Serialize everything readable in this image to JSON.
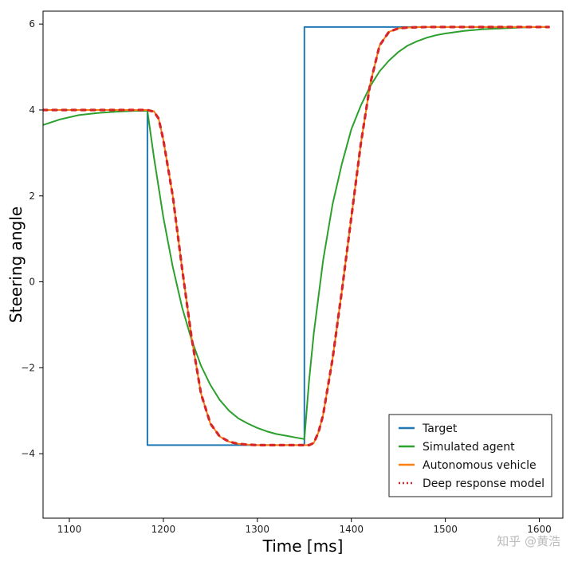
{
  "watermark": "知乎 @黄浩",
  "chart_data": {
    "type": "line",
    "title": "",
    "xlabel": "Time [ms]",
    "ylabel": "Steering angle",
    "xlim": [
      1072,
      1625
    ],
    "ylim": [
      -5.5,
      6.3
    ],
    "xticks": [
      1100,
      1200,
      1300,
      1400,
      1500,
      1600
    ],
    "yticks": [
      -4,
      -2,
      0,
      2,
      4,
      6
    ],
    "xtick_labels": [
      "1100",
      "1200",
      "1300",
      "1400",
      "1500",
      "1600"
    ],
    "ytick_labels": [
      "−4",
      "−2",
      "0",
      "2",
      "4",
      "6"
    ],
    "grid": false,
    "legend_position": "lower-right",
    "series": [
      {
        "name": "Target",
        "color": "#1f77b4",
        "style": "solid",
        "x": [
          1183,
          1183,
          1350,
          1350,
          1610
        ],
        "y": [
          4.0,
          -3.8,
          -3.8,
          5.93,
          5.93
        ]
      },
      {
        "name": "Simulated agent",
        "color": "#2ca02c",
        "style": "solid",
        "x": [
          1072,
          1090,
          1110,
          1130,
          1150,
          1170,
          1183,
          1190,
          1200,
          1210,
          1220,
          1230,
          1240,
          1250,
          1260,
          1270,
          1280,
          1290,
          1300,
          1310,
          1320,
          1330,
          1340,
          1350,
          1355,
          1360,
          1370,
          1380,
          1390,
          1400,
          1410,
          1420,
          1430,
          1440,
          1450,
          1460,
          1470,
          1480,
          1490,
          1500,
          1520,
          1540,
          1560,
          1580,
          1600,
          1610
        ],
        "y": [
          3.65,
          3.78,
          3.88,
          3.93,
          3.96,
          3.98,
          3.98,
          2.9,
          1.5,
          0.35,
          -0.6,
          -1.35,
          -1.95,
          -2.4,
          -2.75,
          -3.0,
          -3.18,
          -3.3,
          -3.4,
          -3.48,
          -3.54,
          -3.58,
          -3.62,
          -3.66,
          -2.3,
          -1.2,
          0.5,
          1.8,
          2.75,
          3.55,
          4.1,
          4.55,
          4.9,
          5.15,
          5.35,
          5.5,
          5.6,
          5.68,
          5.74,
          5.78,
          5.84,
          5.88,
          5.9,
          5.92,
          5.93,
          5.93
        ]
      },
      {
        "name": "Autonomous vehicle",
        "color": "#ff7f0e",
        "style": "solid",
        "x": [
          1072,
          1183,
          1190,
          1195,
          1200,
          1210,
          1220,
          1230,
          1240,
          1250,
          1260,
          1270,
          1280,
          1290,
          1300,
          1320,
          1340,
          1355,
          1360,
          1365,
          1370,
          1380,
          1390,
          1400,
          1410,
          1420,
          1430,
          1440,
          1450,
          1460,
          1480,
          1500,
          1540,
          1580,
          1610
        ],
        "y": [
          4.0,
          4.0,
          3.97,
          3.8,
          3.3,
          2.0,
          0.3,
          -1.3,
          -2.6,
          -3.3,
          -3.6,
          -3.72,
          -3.77,
          -3.79,
          -3.8,
          -3.8,
          -3.8,
          -3.8,
          -3.75,
          -3.5,
          -3.1,
          -1.8,
          -0.2,
          1.5,
          3.2,
          4.6,
          5.5,
          5.82,
          5.9,
          5.92,
          5.93,
          5.93,
          5.93,
          5.93,
          5.93
        ]
      },
      {
        "name": "Deep response model",
        "color": "#d62728",
        "style": "dotted",
        "x": [
          1072,
          1183,
          1190,
          1195,
          1200,
          1210,
          1220,
          1230,
          1240,
          1250,
          1260,
          1270,
          1280,
          1290,
          1300,
          1320,
          1340,
          1355,
          1360,
          1365,
          1370,
          1380,
          1390,
          1400,
          1410,
          1420,
          1430,
          1440,
          1450,
          1460,
          1480,
          1500,
          1540,
          1580,
          1610
        ],
        "y": [
          4.0,
          4.0,
          3.96,
          3.8,
          3.3,
          2.0,
          0.3,
          -1.3,
          -2.6,
          -3.3,
          -3.6,
          -3.72,
          -3.77,
          -3.79,
          -3.8,
          -3.8,
          -3.8,
          -3.8,
          -3.75,
          -3.5,
          -3.1,
          -1.8,
          -0.2,
          1.5,
          3.2,
          4.6,
          5.5,
          5.82,
          5.9,
          5.92,
          5.93,
          5.93,
          5.93,
          5.93,
          5.93
        ]
      }
    ]
  }
}
